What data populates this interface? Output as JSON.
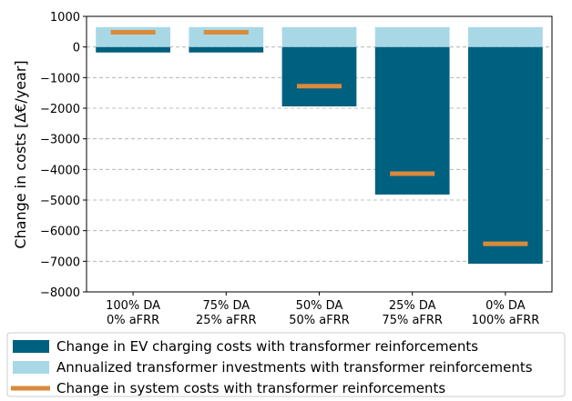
{
  "chart_data": {
    "type": "bar",
    "ylabel": "Change in costs [Δ€/year]",
    "categories": [
      [
        "100% DA",
        "0% aFRR"
      ],
      [
        "75% DA",
        "25% aFRR"
      ],
      [
        "50% DA",
        "50% aFRR"
      ],
      [
        "25% DA",
        "75% aFRR"
      ],
      [
        "0% DA",
        "100% aFRR"
      ]
    ],
    "series": [
      {
        "name": "Change in EV charging costs with transformer reinforcements",
        "type": "bar",
        "color": "#006080",
        "values": [
          -180,
          -180,
          -1940,
          -4820,
          -7080
        ]
      },
      {
        "name": "Annualized transformer investments with transformer reinforcements",
        "type": "bar",
        "color": "#a8d8e6",
        "values": [
          650,
          650,
          650,
          650,
          650
        ]
      },
      {
        "name": "Change in system costs with transformer reinforcements",
        "type": "hline",
        "color": "#d98a3a",
        "values": [
          480,
          480,
          -1280,
          -4140,
          -6430
        ]
      }
    ],
    "ylim": [
      -8000,
      1000
    ],
    "yticks": [
      {
        "value": -8000,
        "label": "−8000"
      },
      {
        "value": -7000,
        "label": "−7000"
      },
      {
        "value": -6000,
        "label": "−6000"
      },
      {
        "value": -5000,
        "label": "−5000"
      },
      {
        "value": -4000,
        "label": "−4000"
      },
      {
        "value": -3000,
        "label": "−3000"
      },
      {
        "value": -2000,
        "label": "−2000"
      },
      {
        "value": -1000,
        "label": "−1000"
      },
      0,
      1000
    ],
    "grid": true,
    "legend": "bottom"
  }
}
